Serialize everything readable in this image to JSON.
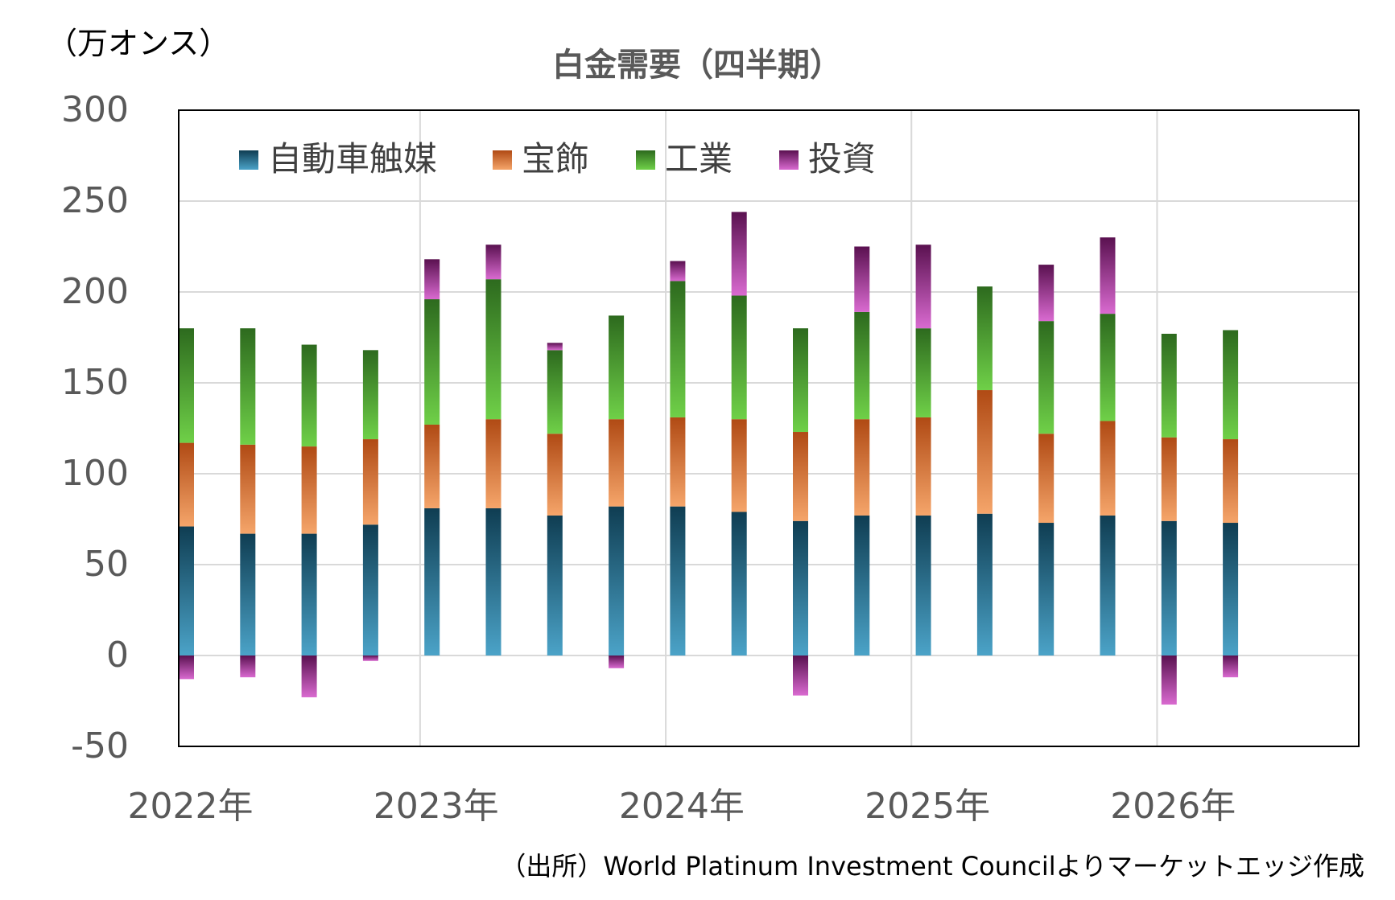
{
  "chart_data": {
    "type": "bar",
    "stacked": true,
    "title": "白金需要（四半期）",
    "unit_label": "（万オンス）",
    "source": "（出所）World Platinum Investment Councilよりマーケットエッジ作成",
    "ylim": [
      -50,
      300
    ],
    "yticks": [
      "300",
      "250",
      "200",
      "150",
      "100",
      "50",
      "0",
      "-50"
    ],
    "ytick_values": [
      300,
      250,
      200,
      150,
      100,
      50,
      0,
      -50
    ],
    "negative_tick_color": "#ff0000",
    "xtick_labels": [
      "2022年",
      "2023年",
      "2024年",
      "2025年",
      "2026年"
    ],
    "grid": true,
    "legend_position": "top-left",
    "categories": [
      "2022Q1",
      "2022Q2",
      "2022Q3",
      "2022Q4",
      "2023Q1",
      "2023Q2",
      "2023Q3",
      "2023Q4",
      "2024Q1",
      "2024Q2",
      "2024Q3",
      "2024Q4",
      "2025Q1",
      "2025Q2",
      "2025Q3",
      "2025Q4",
      "2026Q1",
      "2026Q2"
    ],
    "series": [
      {
        "name": "自動車触媒",
        "color_top": "#0f3d52",
        "color_bottom": "#4ba3c8",
        "values": [
          71,
          67,
          67,
          72,
          81,
          81,
          77,
          82,
          82,
          79,
          74,
          77,
          77,
          78,
          73,
          77,
          74,
          73
        ]
      },
      {
        "name": "宝飾",
        "color_top": "#b04a14",
        "color_bottom": "#f5a56a",
        "values": [
          46,
          49,
          48,
          47,
          46,
          49,
          45,
          48,
          49,
          51,
          49,
          53,
          54,
          68,
          49,
          52,
          46,
          46
        ]
      },
      {
        "name": "工業",
        "color_top": "#2d6a1e",
        "color_bottom": "#6fd048",
        "values": [
          63,
          64,
          56,
          49,
          69,
          77,
          46,
          57,
          75,
          68,
          57,
          59,
          49,
          57,
          62,
          59,
          57,
          60
        ]
      },
      {
        "name": "投資",
        "color_top": "#5a1150",
        "color_bottom": "#d96ad0",
        "values": [
          -13,
          -12,
          -23,
          -3,
          22,
          19,
          4,
          -7,
          11,
          46,
          -22,
          36,
          46,
          0,
          31,
          42,
          -27,
          -12
        ]
      }
    ]
  }
}
